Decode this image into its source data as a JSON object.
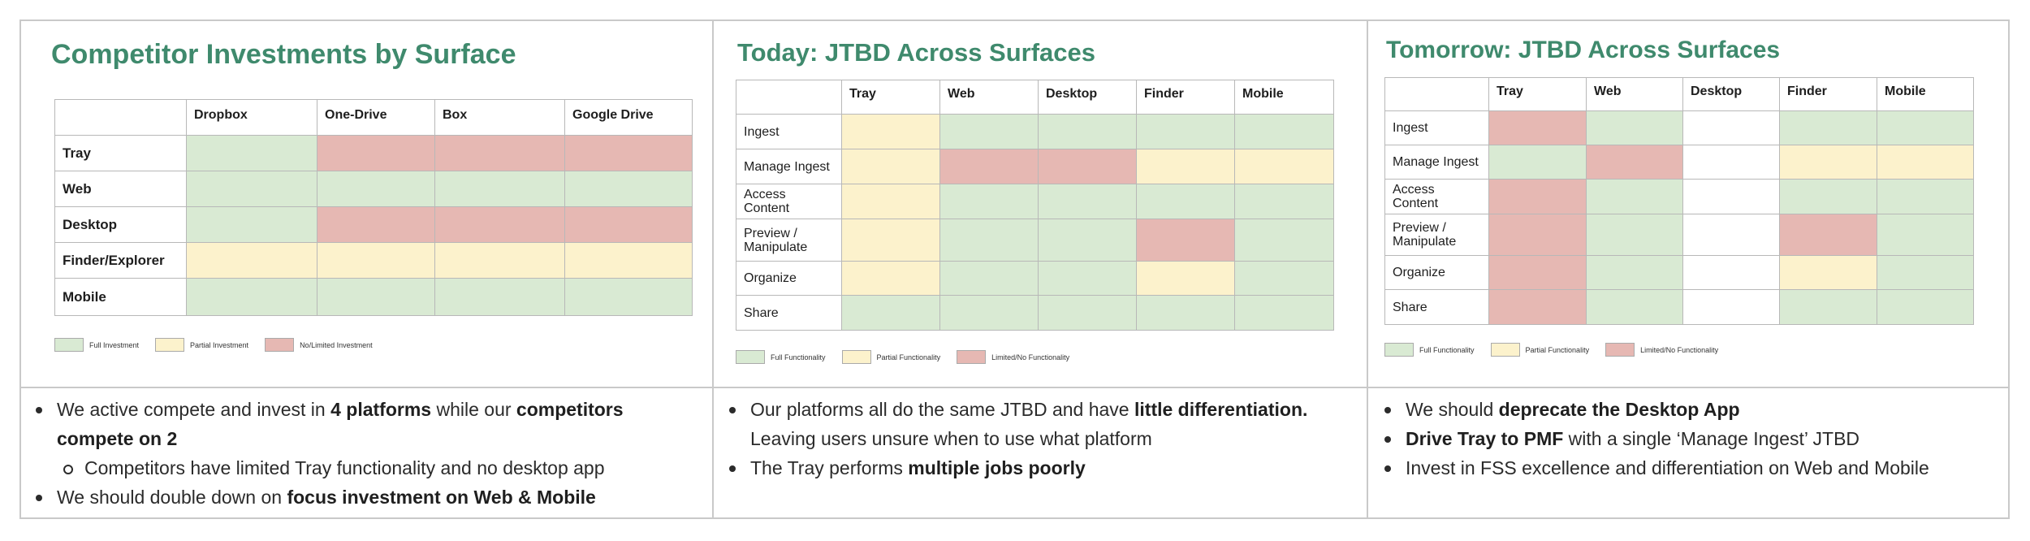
{
  "colors": {
    "full": "#d9ead3",
    "partial": "#fcf2cc",
    "limited": "#e6b8b3",
    "title": "#3f8a6d"
  },
  "legend_labels": {
    "full_investment": "Full Investment",
    "partial_investment": "Partial Investment",
    "no_limited_investment": "No/Limited Investment",
    "full_functionality": "Full Functionality",
    "partial_functionality": "Partial Functionality",
    "limited_no_functionality": "Limited/No Functionality"
  },
  "panels": [
    {
      "title": "Competitor Investments by Surface",
      "columns": [
        "Dropbox",
        "One-Drive",
        "Box",
        "Google Drive"
      ],
      "rows": [
        {
          "label": "Tray",
          "cells": [
            "full",
            "limited",
            "limited",
            "limited"
          ]
        },
        {
          "label": "Web",
          "cells": [
            "full",
            "full",
            "full",
            "full"
          ]
        },
        {
          "label": "Desktop",
          "cells": [
            "full",
            "limited",
            "limited",
            "limited"
          ]
        },
        {
          "label": "Finder/Explorer",
          "cells": [
            "partial",
            "partial",
            "partial",
            "partial"
          ]
        },
        {
          "label": "Mobile",
          "cells": [
            "full",
            "full",
            "full",
            "full"
          ]
        }
      ]
    },
    {
      "title": "Today: JTBD Across Surfaces",
      "columns": [
        "Tray",
        "Web",
        "Desktop",
        "Finder",
        "Mobile"
      ],
      "rows": [
        {
          "label": "Ingest",
          "cells": [
            "partial",
            "full",
            "full",
            "full",
            "full"
          ]
        },
        {
          "label": "Manage Ingest",
          "cells": [
            "partial",
            "limited",
            "limited",
            "partial",
            "partial"
          ]
        },
        {
          "label": "Access Content",
          "cells": [
            "partial",
            "full",
            "full",
            "full",
            "full"
          ]
        },
        {
          "label": "Preview / Manipulate",
          "cells": [
            "partial",
            "full",
            "full",
            "limited",
            "full"
          ]
        },
        {
          "label": "Organize",
          "cells": [
            "partial",
            "full",
            "full",
            "partial",
            "full"
          ]
        },
        {
          "label": "Share",
          "cells": [
            "full",
            "full",
            "full",
            "full",
            "full"
          ]
        }
      ]
    },
    {
      "title": "Tomorrow: JTBD Across Surfaces",
      "columns": [
        "Tray",
        "Web",
        "Desktop",
        "Finder",
        "Mobile"
      ],
      "rows": [
        {
          "label": "Ingest",
          "cells": [
            "limited",
            "full",
            "blank",
            "full",
            "full"
          ]
        },
        {
          "label": "Manage Ingest",
          "cells": [
            "full",
            "limited",
            "blank",
            "partial",
            "partial"
          ]
        },
        {
          "label": "Access Content",
          "cells": [
            "limited",
            "full",
            "blank",
            "full",
            "full"
          ]
        },
        {
          "label": "Preview / Manipulate",
          "cells": [
            "limited",
            "full",
            "blank",
            "limited",
            "full"
          ]
        },
        {
          "label": "Organize",
          "cells": [
            "limited",
            "full",
            "blank",
            "partial",
            "full"
          ]
        },
        {
          "label": "Share",
          "cells": [
            "limited",
            "full",
            "blank",
            "full",
            "full"
          ]
        }
      ]
    }
  ],
  "notes": [
    [
      {
        "level": 0,
        "parts": [
          {
            "t": "We active compete and invest in "
          },
          {
            "t": "4 platforms",
            "b": true
          },
          {
            "t": " while our "
          },
          {
            "t": "competitors compete on 2",
            "b": true
          }
        ]
      },
      {
        "level": 1,
        "parts": [
          {
            "t": "Competitors have limited Tray functionality and no desktop app"
          }
        ]
      },
      {
        "level": 0,
        "parts": [
          {
            "t": "We should double down on "
          },
          {
            "t": "focus investment on Web & Mobile",
            "b": true
          }
        ]
      }
    ],
    [
      {
        "level": 0,
        "parts": [
          {
            "t": "Our platforms all do the same JTBD and have "
          },
          {
            "t": "little differentiation.",
            "b": true
          },
          {
            "t": " Leaving users unsure when to use what platform"
          }
        ]
      },
      {
        "level": 0,
        "parts": [
          {
            "t": "The Tray performs "
          },
          {
            "t": "multiple jobs poorly",
            "b": true
          }
        ]
      }
    ],
    [
      {
        "level": 0,
        "parts": [
          {
            "t": "We should "
          },
          {
            "t": "deprecate the Desktop App",
            "b": true
          }
        ]
      },
      {
        "level": 0,
        "parts": [
          {
            "t": "Drive Tray to PMF",
            "b": true
          },
          {
            "t": " with a single ‘Manage Ingest’ JTBD"
          }
        ]
      },
      {
        "level": 0,
        "parts": [
          {
            "t": "Invest in FSS excellence and differentiation on Web and Mobile"
          }
        ]
      }
    ]
  ]
}
